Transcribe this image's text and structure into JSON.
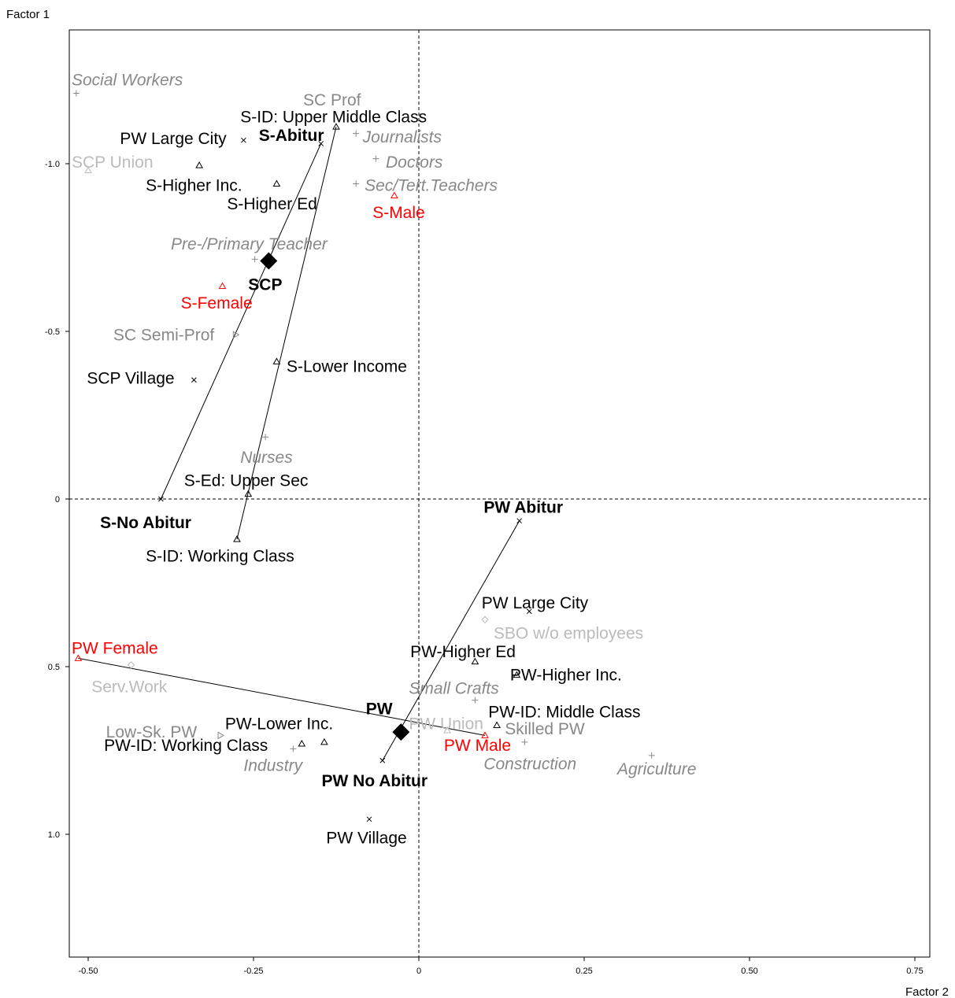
{
  "chart_data": {
    "type": "scatter",
    "xlabel": "Factor 2",
    "ylabel": "Factor 1",
    "xlim": [
      -0.525,
      0.775
    ],
    "ylim": [
      1.375,
      -1.4
    ],
    "y_inverted": true,
    "x_ticks": [
      "-0.50",
      "-0.25",
      "0",
      "0.25",
      "0.50",
      "0.75"
    ],
    "x_tick_values": [
      -0.5,
      -0.25,
      0,
      0.25,
      0.5,
      0.75
    ],
    "y_ticks": [
      "-1.0",
      "-0.5",
      "0",
      "0.5",
      "1.0"
    ],
    "y_tick_values": [
      -1.0,
      -0.5,
      0,
      0.5,
      1.0
    ],
    "reference_lines": {
      "x": 0,
      "y": 0,
      "style": "dashed"
    },
    "colors": {
      "black": "#000000",
      "gray": "#888888",
      "light_gray": "#bbbbbb",
      "red": "#ff0000"
    },
    "points": [
      {
        "label": "Social Workers",
        "x": -0.518,
        "y": -1.21,
        "marker": "+",
        "color": "gray",
        "italic": true,
        "bold": false,
        "lx": -0.525,
        "ly": -1.25,
        "anchor": "start"
      },
      {
        "label": "SC Prof",
        "x": -0.13,
        "y": -1.11,
        "marker": "",
        "color": "gray",
        "italic": false,
        "bold": false,
        "lx": -0.175,
        "ly": -1.19,
        "anchor": "start"
      },
      {
        "label": "S-ID: Upper Middle Class",
        "x": -0.125,
        "y": -1.11,
        "marker": "triangle",
        "color": "black",
        "italic": false,
        "bold": false,
        "lx": -0.27,
        "ly": -1.14,
        "anchor": "start"
      },
      {
        "label": "S-Abitur",
        "x": -0.148,
        "y": -1.06,
        "marker": "x",
        "color": "black",
        "italic": false,
        "bold": true,
        "lx": -0.242,
        "ly": -1.085,
        "anchor": "start"
      },
      {
        "label": "Journalists",
        "x": -0.095,
        "y": -1.09,
        "marker": "+",
        "color": "gray",
        "italic": true,
        "bold": false,
        "lx": -0.085,
        "ly": -1.08,
        "anchor": "start"
      },
      {
        "label": "PW Large City",
        "x": -0.265,
        "y": -1.07,
        "marker": "x",
        "color": "black",
        "italic": false,
        "bold": false,
        "lx": -0.452,
        "ly": -1.075,
        "anchor": "start"
      },
      {
        "label": "SCP Union",
        "x": -0.5,
        "y": -0.98,
        "marker": "triangle",
        "color": "light_gray",
        "italic": false,
        "bold": false,
        "lx": -0.525,
        "ly": -1.005,
        "anchor": "start"
      },
      {
        "label": "Doctors",
        "x": -0.065,
        "y": -1.015,
        "marker": "+",
        "color": "gray",
        "italic": true,
        "bold": false,
        "lx": -0.05,
        "ly": -1.005,
        "anchor": "start"
      },
      {
        "label": "S-Higher Inc.",
        "x": -0.332,
        "y": -0.995,
        "marker": "triangle",
        "color": "black",
        "italic": false,
        "bold": false,
        "lx": -0.413,
        "ly": -0.935,
        "anchor": "start"
      },
      {
        "label": "S-Higher Ed",
        "x": -0.215,
        "y": -0.94,
        "marker": "triangle",
        "color": "black",
        "italic": false,
        "bold": false,
        "lx": -0.29,
        "ly": -0.88,
        "anchor": "start"
      },
      {
        "label": "Sec/Tert.Teachers",
        "x": -0.095,
        "y": -0.94,
        "marker": "+",
        "color": "gray",
        "italic": true,
        "bold": false,
        "lx": -0.082,
        "ly": -0.935,
        "anchor": "start"
      },
      {
        "label": "S-Male",
        "x": -0.037,
        "y": -0.905,
        "marker": "triangle",
        "color": "red",
        "italic": false,
        "bold": false,
        "lx": -0.07,
        "ly": -0.855,
        "anchor": "start"
      },
      {
        "label": "Pre-/Primary Teacher",
        "x": -0.248,
        "y": -0.715,
        "marker": "+",
        "color": "gray",
        "italic": true,
        "bold": false,
        "lx": -0.375,
        "ly": -0.76,
        "anchor": "start"
      },
      {
        "label": "SCP",
        "x": -0.227,
        "y": -0.71,
        "marker": "diamond",
        "color": "black",
        "italic": false,
        "bold": true,
        "big": true,
        "lx": -0.258,
        "ly": -0.64,
        "anchor": "start"
      },
      {
        "label": "S-Female",
        "x": -0.297,
        "y": -0.635,
        "marker": "triangle",
        "color": "red",
        "italic": false,
        "bold": false,
        "lx": -0.36,
        "ly": -0.585,
        "anchor": "start"
      },
      {
        "label": "SC Semi-Prof",
        "x": -0.277,
        "y": -0.49,
        "marker": "triangle-right",
        "color": "gray",
        "italic": false,
        "bold": false,
        "lx": -0.462,
        "ly": -0.49,
        "anchor": "start"
      },
      {
        "label": "S-Lower Income",
        "x": -0.215,
        "y": -0.41,
        "marker": "triangle",
        "color": "black",
        "italic": false,
        "bold": false,
        "lx": -0.2,
        "ly": -0.395,
        "anchor": "start"
      },
      {
        "label": "SCP Village",
        "x": -0.34,
        "y": -0.355,
        "marker": "x",
        "color": "black",
        "italic": false,
        "bold": false,
        "lx": -0.502,
        "ly": -0.36,
        "anchor": "start"
      },
      {
        "label": "Nurses",
        "x": -0.232,
        "y": -0.185,
        "marker": "+",
        "color": "gray",
        "italic": true,
        "bold": false,
        "lx": -0.27,
        "ly": -0.125,
        "anchor": "start"
      },
      {
        "label": "S-Ed: Upper Sec",
        "x": -0.258,
        "y": -0.015,
        "marker": "triangle",
        "color": "black",
        "italic": false,
        "bold": false,
        "lx": -0.355,
        "ly": -0.055,
        "anchor": "start"
      },
      {
        "label": "S-No Abitur",
        "x": -0.39,
        "y": 0.0,
        "marker": "x",
        "color": "black",
        "italic": false,
        "bold": true,
        "lx": -0.482,
        "ly": 0.07,
        "anchor": "start"
      },
      {
        "label": "S-ID: Working Class",
        "x": -0.275,
        "y": 0.12,
        "marker": "triangle",
        "color": "black",
        "italic": false,
        "bold": false,
        "lx": -0.413,
        "ly": 0.17,
        "anchor": "start"
      },
      {
        "label": "PW Abitur",
        "x": 0.152,
        "y": 0.065,
        "marker": "x",
        "color": "black",
        "italic": false,
        "bold": true,
        "lx": 0.098,
        "ly": 0.025,
        "anchor": "start"
      },
      {
        "label": "PW Large City",
        "x": 0.167,
        "y": 0.335,
        "marker": "x",
        "color": "black",
        "italic": false,
        "bold": false,
        "lx": 0.095,
        "ly": 0.31,
        "anchor": "start"
      },
      {
        "label": "SBO w/o employees",
        "x": 0.1,
        "y": 0.36,
        "marker": "diamond-open",
        "color": "light_gray",
        "italic": false,
        "bold": false,
        "lx": 0.113,
        "ly": 0.4,
        "anchor": "start"
      },
      {
        "label": "PW-Higher Ed",
        "x": 0.085,
        "y": 0.485,
        "marker": "triangle",
        "color": "black",
        "italic": false,
        "bold": false,
        "lx": -0.013,
        "ly": 0.455,
        "anchor": "start"
      },
      {
        "label": "PW-Higher Inc.",
        "x": 0.148,
        "y": 0.525,
        "marker": "triangle",
        "color": "black",
        "italic": false,
        "bold": false,
        "lx": 0.138,
        "ly": 0.525,
        "anchor": "start"
      },
      {
        "label": "PW Female",
        "x": -0.515,
        "y": 0.475,
        "marker": "triangle",
        "color": "red",
        "italic": false,
        "bold": false,
        "lx": -0.525,
        "ly": 0.445,
        "anchor": "start"
      },
      {
        "label": "Serv.Work",
        "x": -0.435,
        "y": 0.495,
        "marker": "diamond-open",
        "color": "light_gray",
        "italic": false,
        "bold": false,
        "lx": -0.495,
        "ly": 0.56,
        "anchor": "start"
      },
      {
        "label": "Small Crafts",
        "x": 0.085,
        "y": 0.6,
        "marker": "+",
        "color": "gray",
        "italic": true,
        "bold": false,
        "lx": -0.015,
        "ly": 0.565,
        "anchor": "start"
      },
      {
        "label": "PW",
        "x": -0.027,
        "y": 0.695,
        "marker": "diamond",
        "color": "black",
        "italic": false,
        "bold": true,
        "big": true,
        "lx": -0.08,
        "ly": 0.625,
        "anchor": "start"
      },
      {
        "label": "PW-ID: Middle Class",
        "x": 0.118,
        "y": 0.675,
        "marker": "triangle",
        "color": "black",
        "italic": false,
        "bold": false,
        "lx": 0.105,
        "ly": 0.635,
        "anchor": "start"
      },
      {
        "label": "PW Union",
        "x": 0.043,
        "y": 0.69,
        "marker": "triangle",
        "color": "light_gray",
        "italic": false,
        "bold": false,
        "lx": -0.015,
        "ly": 0.67,
        "anchor": "start"
      },
      {
        "label": "Skilled PW",
        "x": 0.16,
        "y": 0.725,
        "marker": "+",
        "color": "gray",
        "italic": false,
        "bold": false,
        "lx": 0.13,
        "ly": 0.685,
        "anchor": "start"
      },
      {
        "label": "Low-Sk. PW",
        "x": -0.3,
        "y": 0.705,
        "marker": "triangle-right",
        "color": "gray",
        "italic": false,
        "bold": false,
        "lx": -0.473,
        "ly": 0.695,
        "anchor": "start"
      },
      {
        "label": "PW-Lower Inc.",
        "x": -0.143,
        "y": 0.725,
        "marker": "triangle",
        "color": "black",
        "italic": false,
        "bold": false,
        "lx": -0.293,
        "ly": 0.67,
        "anchor": "start"
      },
      {
        "label": "PW-ID: Working Class",
        "x": -0.177,
        "y": 0.73,
        "marker": "triangle",
        "color": "black",
        "italic": false,
        "bold": false,
        "lx": -0.476,
        "ly": 0.735,
        "anchor": "start"
      },
      {
        "label": "Industry",
        "x": -0.19,
        "y": 0.745,
        "marker": "+",
        "color": "gray",
        "italic": true,
        "bold": false,
        "lx": -0.265,
        "ly": 0.795,
        "anchor": "start"
      },
      {
        "label": "PW Male",
        "x": 0.1,
        "y": 0.705,
        "marker": "triangle",
        "color": "red",
        "italic": false,
        "bold": false,
        "lx": 0.038,
        "ly": 0.735,
        "anchor": "start"
      },
      {
        "label": "Construction",
        "x": 0.1,
        "y": 0.735,
        "marker": "",
        "color": "gray",
        "italic": true,
        "bold": false,
        "lx": 0.098,
        "ly": 0.79,
        "anchor": "start"
      },
      {
        "label": "Agriculture",
        "x": 0.352,
        "y": 0.765,
        "marker": "+",
        "color": "gray",
        "italic": true,
        "bold": false,
        "lx": 0.3,
        "ly": 0.805,
        "anchor": "start"
      },
      {
        "label": "PW No Abitur",
        "x": -0.055,
        "y": 0.78,
        "marker": "x",
        "color": "black",
        "italic": false,
        "bold": true,
        "lx": -0.147,
        "ly": 0.84,
        "anchor": "start"
      },
      {
        "label": "PW Village",
        "x": -0.075,
        "y": 0.955,
        "marker": "x",
        "color": "black",
        "italic": false,
        "bold": false,
        "lx": -0.14,
        "ly": 1.01,
        "anchor": "start"
      }
    ],
    "segments": [
      {
        "from": [
          -0.39,
          0.0
        ],
        "to": [
          -0.148,
          -1.06
        ]
      },
      {
        "from": [
          -0.275,
          0.12
        ],
        "to": [
          -0.125,
          -1.11
        ]
      },
      {
        "from": [
          0.152,
          0.065
        ],
        "to": [
          -0.055,
          0.78
        ]
      },
      {
        "from": [
          -0.515,
          0.475
        ],
        "to": [
          0.1,
          0.705
        ]
      }
    ]
  }
}
